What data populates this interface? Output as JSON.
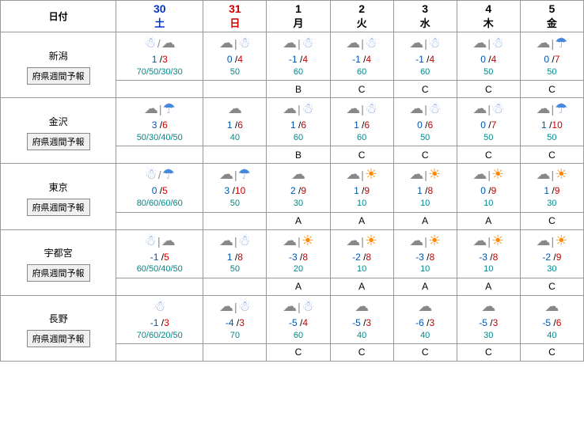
{
  "header": {
    "date_label": "日付",
    "days": [
      {
        "num": "30",
        "day": "土",
        "cls": "date-sat"
      },
      {
        "num": "31",
        "day": "日",
        "cls": "date-sun"
      },
      {
        "num": "1",
        "day": "月",
        "cls": ""
      },
      {
        "num": "2",
        "day": "火",
        "cls": ""
      },
      {
        "num": "3",
        "day": "水",
        "cls": ""
      },
      {
        "num": "4",
        "day": "木",
        "cls": ""
      },
      {
        "num": "5",
        "day": "金",
        "cls": ""
      }
    ]
  },
  "button_label": "府県週間予報",
  "cities": [
    {
      "name": "新潟",
      "cells": [
        {
          "icons": [
            "snow",
            "cloud"
          ],
          "sep": "/",
          "low": "1",
          "high": "3",
          "prob": "70/50/30/30",
          "sub": "diag"
        },
        {
          "icons": [
            "cloud",
            "snow"
          ],
          "sep": "|",
          "low": "0",
          "high": "4",
          "prob": "50",
          "sub": "diag"
        },
        {
          "icons": [
            "cloud",
            "snow"
          ],
          "sep": "|",
          "low": "-1",
          "high": "4",
          "prob": "60",
          "sub": "b"
        },
        {
          "icons": [
            "cloud",
            "snow"
          ],
          "sep": "|",
          "low": "-1",
          "high": "4",
          "prob": "60",
          "sub": "c"
        },
        {
          "icons": [
            "cloud",
            "snow"
          ],
          "sep": "|",
          "low": "-1",
          "high": "4",
          "prob": "60",
          "sub": "c"
        },
        {
          "icons": [
            "cloud",
            "snow"
          ],
          "sep": "|",
          "low": "0",
          "high": "4",
          "prob": "50",
          "sub": "c"
        },
        {
          "icons": [
            "cloud",
            "rain"
          ],
          "sep": "|",
          "low": "0",
          "high": "7",
          "prob": "50",
          "sub": "c"
        }
      ]
    },
    {
      "name": "金沢",
      "cells": [
        {
          "icons": [
            "cloud",
            "rain"
          ],
          "sep": "|",
          "low": "3",
          "high": "6",
          "prob": "50/30/40/50",
          "sub": "diag"
        },
        {
          "icons": [
            "cloud"
          ],
          "sep": "",
          "low": "1",
          "high": "6",
          "prob": "40",
          "sub": "diag"
        },
        {
          "icons": [
            "cloud",
            "snow"
          ],
          "sep": "|",
          "low": "1",
          "high": "6",
          "prob": "60",
          "sub": "b"
        },
        {
          "icons": [
            "cloud",
            "snow"
          ],
          "sep": "|",
          "low": "1",
          "high": "6",
          "prob": "60",
          "sub": "c"
        },
        {
          "icons": [
            "cloud",
            "snow"
          ],
          "sep": "|",
          "low": "0",
          "high": "6",
          "prob": "50",
          "sub": "c"
        },
        {
          "icons": [
            "cloud",
            "snow"
          ],
          "sep": "|",
          "low": "0",
          "high": "7",
          "prob": "50",
          "sub": "c"
        },
        {
          "icons": [
            "cloud",
            "rain"
          ],
          "sep": "|",
          "low": "1",
          "high": "10",
          "prob": "50",
          "sub": "c"
        }
      ]
    },
    {
      "name": "東京",
      "cells": [
        {
          "icons": [
            "snow",
            "rain"
          ],
          "sep": "/",
          "low": "0",
          "high": "5",
          "prob": "80/60/60/60",
          "sub": "diag"
        },
        {
          "icons": [
            "cloud",
            "rain"
          ],
          "sep": "|",
          "low": "3",
          "high": "10",
          "prob": "50",
          "sub": "diag"
        },
        {
          "icons": [
            "cloud"
          ],
          "sep": "",
          "low": "2",
          "high": "9",
          "prob": "30",
          "sub": "a"
        },
        {
          "icons": [
            "cloud",
            "sun"
          ],
          "sep": "|",
          "low": "1",
          "high": "9",
          "prob": "10",
          "sub": "a"
        },
        {
          "icons": [
            "cloud",
            "sun"
          ],
          "sep": "|",
          "low": "1",
          "high": "8",
          "prob": "10",
          "sub": "a"
        },
        {
          "icons": [
            "cloud",
            "sun"
          ],
          "sep": "|",
          "low": "0",
          "high": "9",
          "prob": "10",
          "sub": "a"
        },
        {
          "icons": [
            "cloud",
            "sun"
          ],
          "sep": "|",
          "low": "1",
          "high": "9",
          "prob": "30",
          "sub": "cd"
        }
      ]
    },
    {
      "name": "宇都宮",
      "cells": [
        {
          "icons": [
            "snow",
            "cloud"
          ],
          "sep": "|",
          "low": "-1",
          "high": "5",
          "prob": "60/50/40/50",
          "sub": "diag"
        },
        {
          "icons": [
            "cloud",
            "snow"
          ],
          "sep": "|",
          "low": "1",
          "high": "8",
          "prob": "50",
          "sub": "diag"
        },
        {
          "icons": [
            "cloud",
            "sun"
          ],
          "sep": "|",
          "low": "-3",
          "high": "8",
          "prob": "20",
          "sub": "a"
        },
        {
          "icons": [
            "cloud",
            "sun"
          ],
          "sep": "|",
          "low": "-2",
          "high": "8",
          "prob": "10",
          "sub": "a"
        },
        {
          "icons": [
            "cloud",
            "sun"
          ],
          "sep": "|",
          "low": "-3",
          "high": "8",
          "prob": "10",
          "sub": "a"
        },
        {
          "icons": [
            "cloud",
            "sun"
          ],
          "sep": "|",
          "low": "-3",
          "high": "8",
          "prob": "10",
          "sub": "a"
        },
        {
          "icons": [
            "cloud",
            "sun"
          ],
          "sep": "|",
          "low": "-2",
          "high": "9",
          "prob": "30",
          "sub": "cd"
        }
      ]
    },
    {
      "name": "長野",
      "cells": [
        {
          "icons": [
            "snow"
          ],
          "sep": "",
          "low": "-1",
          "high": "3",
          "prob": "70/60/20/50",
          "sub": "diag"
        },
        {
          "icons": [
            "cloud",
            "snow"
          ],
          "sep": "|",
          "low": "-4",
          "high": "3",
          "prob": "70",
          "sub": "diag"
        },
        {
          "icons": [
            "cloud",
            "snow"
          ],
          "sep": "|",
          "low": "-5",
          "high": "4",
          "prob": "60",
          "sub": "c"
        },
        {
          "icons": [
            "cloud"
          ],
          "sep": "",
          "low": "-5",
          "high": "3",
          "prob": "40",
          "sub": "c"
        },
        {
          "icons": [
            "cloud"
          ],
          "sep": "",
          "low": "-6",
          "high": "3",
          "prob": "40",
          "sub": "c"
        },
        {
          "icons": [
            "cloud"
          ],
          "sep": "",
          "low": "-5",
          "high": "3",
          "prob": "30",
          "sub": "c"
        },
        {
          "icons": [
            "cloud"
          ],
          "sep": "",
          "low": "-5",
          "high": "6",
          "prob": "40",
          "sub": "c"
        }
      ]
    }
  ],
  "sub_labels": {
    "a": "A",
    "b": "B",
    "c": "C",
    "cd": "C"
  }
}
